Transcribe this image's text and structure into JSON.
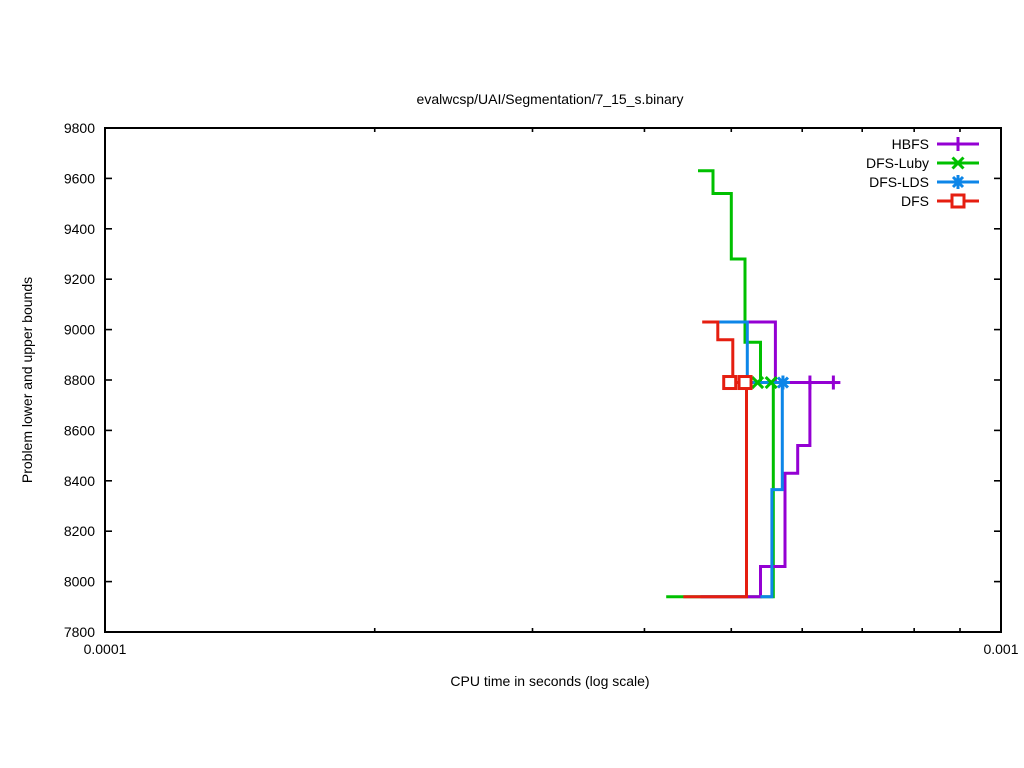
{
  "page": {
    "background": "#ffffff"
  },
  "chart_data": {
    "type": "line",
    "title": "evalwcsp/UAI/Segmentation/7_15_s.binary",
    "xlabel": "CPU time in seconds (log scale)",
    "ylabel": "Problem lower and upper bounds",
    "x_scale": "log",
    "xlim": [
      0.0001,
      0.001
    ],
    "ylim": [
      7800,
      9800
    ],
    "grid": false,
    "legend_position": "top-right-inside",
    "x_major_ticks": [
      {
        "value": 0.0001,
        "label": "0.0001"
      },
      {
        "value": 0.001,
        "label": "0.001"
      }
    ],
    "x_minor_ticks": [
      0.0002,
      0.0003,
      0.0004,
      0.0005,
      0.0006,
      0.0007,
      0.0008,
      0.0009
    ],
    "y_ticks": [
      {
        "value": 7800,
        "label": "7800"
      },
      {
        "value": 8000,
        "label": "8000"
      },
      {
        "value": 8200,
        "label": "8200"
      },
      {
        "value": 8400,
        "label": "8400"
      },
      {
        "value": 8600,
        "label": "8600"
      },
      {
        "value": 8800,
        "label": "8800"
      },
      {
        "value": 9000,
        "label": "9000"
      },
      {
        "value": 9200,
        "label": "9200"
      },
      {
        "value": 9400,
        "label": "9400"
      },
      {
        "value": 9600,
        "label": "9600"
      },
      {
        "value": 9800,
        "label": "9800"
      }
    ],
    "optimum_value": 8790,
    "initial_lower_bound": 7940,
    "series": [
      {
        "name": "HBFS",
        "color": "#9400D3",
        "marker": "plus",
        "upper_bound": [
          [
            0.000483,
            9030
          ],
          [
            0.00056,
            9030
          ],
          [
            0.00056,
            8790
          ],
          [
            0.000655,
            8790
          ]
        ],
        "lower_bound": [
          [
            0.000462,
            7940
          ],
          [
            0.000539,
            7940
          ],
          [
            0.000539,
            8060
          ],
          [
            0.000574,
            8060
          ],
          [
            0.000574,
            8430
          ],
          [
            0.000593,
            8430
          ],
          [
            0.000593,
            8540
          ],
          [
            0.000612,
            8540
          ],
          [
            0.000612,
            8790
          ],
          [
            0.00065,
            8790
          ]
        ],
        "marker_points": [
          [
            0.000612,
            8790
          ],
          [
            0.00065,
            8790
          ]
        ]
      },
      {
        "name": "DFS-Luby",
        "color": "#00C000",
        "marker": "times",
        "upper_bound": [
          [
            0.000459,
            9630
          ],
          [
            0.000477,
            9630
          ],
          [
            0.000477,
            9540
          ],
          [
            0.0005,
            9540
          ],
          [
            0.0005,
            9280
          ],
          [
            0.000518,
            9280
          ],
          [
            0.000518,
            8950
          ],
          [
            0.000539,
            8950
          ],
          [
            0.000539,
            8790
          ],
          [
            0.000555,
            8790
          ]
        ],
        "lower_bound": [
          [
            0.000423,
            7940
          ],
          [
            0.000557,
            7940
          ],
          [
            0.000557,
            8790
          ]
        ],
        "marker_points": [
          [
            0.000535,
            8790
          ],
          [
            0.000554,
            8790
          ]
        ]
      },
      {
        "name": "DFS-LDS",
        "color": "#0D86E8",
        "marker": "asterisk",
        "upper_bound": [
          [
            0.000483,
            9030
          ],
          [
            0.000521,
            9030
          ],
          [
            0.000521,
            8790
          ],
          [
            0.000571,
            8790
          ]
        ],
        "lower_bound": [
          [
            0.000539,
            7940
          ],
          [
            0.000555,
            7940
          ],
          [
            0.000555,
            8365
          ],
          [
            0.00057,
            8365
          ],
          [
            0.00057,
            8790
          ]
        ],
        "marker_points": [
          [
            0.000571,
            8790
          ]
        ]
      },
      {
        "name": "DFS",
        "color": "#E51E10",
        "marker": "square-open",
        "upper_bound": [
          [
            0.000464,
            9030
          ],
          [
            0.000483,
            9030
          ],
          [
            0.000483,
            8960
          ],
          [
            0.000502,
            8960
          ],
          [
            0.000502,
            8790
          ],
          [
            0.00052,
            8790
          ]
        ],
        "lower_bound": [
          [
            0.000442,
            7940
          ],
          [
            0.00052,
            7940
          ],
          [
            0.00052,
            8790
          ]
        ],
        "marker_points": [
          [
            0.000498,
            8790
          ],
          [
            0.000518,
            8790
          ]
        ]
      }
    ]
  }
}
